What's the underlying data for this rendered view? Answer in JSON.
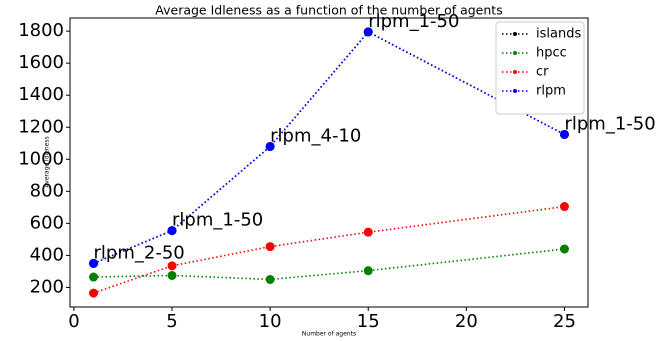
{
  "chart_data": {
    "type": "line",
    "title": "Average Idleness as a function of the number of agents",
    "x_label": "Number of agents",
    "y_label": "Average Idleness",
    "x": [
      1,
      5,
      10,
      15,
      25
    ],
    "series": [
      {
        "name": "islands",
        "color": "#000000",
        "values": [
          350,
          555,
          1080,
          1795,
          1155
        ]
      },
      {
        "name": "hpcc",
        "color": "#008000",
        "values": [
          265,
          275,
          250,
          305,
          440
        ]
      },
      {
        "name": "cr",
        "color": "#ff0000",
        "values": [
          165,
          335,
          455,
          545,
          705
        ]
      },
      {
        "name": "rlpm",
        "color": "#0000ff",
        "values": [
          350,
          555,
          1080,
          1795,
          1155
        ]
      }
    ],
    "annotations": [
      {
        "text": "rlpm_2-50",
        "x": 1,
        "y": 350
      },
      {
        "text": "rlpm_1-50",
        "x": 5,
        "y": 555
      },
      {
        "text": "rlpm_4-10",
        "x": 10,
        "y": 1080
      },
      {
        "text": "rlpm_1-50",
        "x": 15,
        "y": 1795
      },
      {
        "text": "rlpm_1-50",
        "x": 25,
        "y": 1155
      }
    ],
    "xlim": [
      -0.2,
      26.2
    ],
    "ylim": [
      78,
      1882
    ],
    "xticks": [
      0,
      5,
      10,
      15,
      20,
      25
    ],
    "yticks": [
      200,
      400,
      600,
      800,
      1000,
      1200,
      1400,
      1600,
      1800
    ],
    "legend": "upper right"
  }
}
